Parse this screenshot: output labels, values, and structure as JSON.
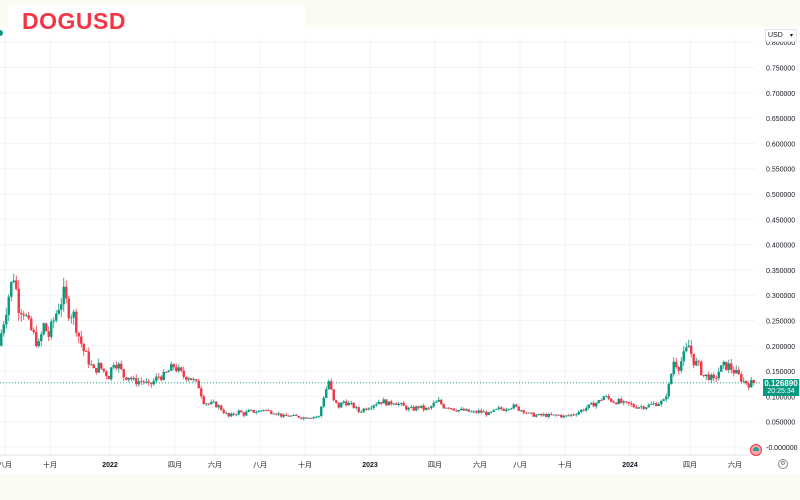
{
  "header": {
    "symbol": "DOGUSD",
    "currency": "USD"
  },
  "price_label": {
    "price": "0.126890",
    "countdown": "20:25:34"
  },
  "chart_data": {
    "type": "candlestick",
    "title": "DOGUSD",
    "interval": "weekly",
    "ylim": [
      0,
      0.8
    ],
    "y_ticks": [
      "0.800000",
      "0.750000",
      "0.700000",
      "0.650000",
      "0.600000",
      "0.550000",
      "0.500000",
      "0.450000",
      "0.400000",
      "0.350000",
      "0.300000",
      "0.250000",
      "0.200000",
      "0.150000",
      "0.100000",
      "0.050000",
      "-0.000000"
    ],
    "y_tick_values": [
      0.8,
      0.75,
      0.7,
      0.65,
      0.6,
      0.55,
      0.5,
      0.45,
      0.4,
      0.35,
      0.3,
      0.25,
      0.2,
      0.15,
      0.1,
      0.05,
      0
    ],
    "x_ticks": [
      "八月",
      "十月",
      "2022",
      "四月",
      "六月",
      "八月",
      "十月",
      "2023",
      "四月",
      "六月",
      "八月",
      "十月",
      "2024",
      "四月",
      "六月"
    ],
    "x_tick_weeks": [
      1,
      10,
      22,
      35,
      43,
      52,
      61,
      74,
      87,
      96,
      104,
      113,
      126,
      138,
      147
    ],
    "current_price": 0.12689,
    "closes": [
      0.2,
      0.25,
      0.3,
      0.34,
      0.28,
      0.27,
      0.24,
      0.22,
      0.2,
      0.24,
      0.22,
      0.25,
      0.28,
      0.3,
      0.27,
      0.26,
      0.22,
      0.19,
      0.17,
      0.15,
      0.16,
      0.15,
      0.14,
      0.17,
      0.16,
      0.14,
      0.14,
      0.13,
      0.13,
      0.13,
      0.12,
      0.13,
      0.14,
      0.14,
      0.15,
      0.16,
      0.15,
      0.14,
      0.14,
      0.13,
      0.12,
      0.09,
      0.085,
      0.085,
      0.08,
      0.07,
      0.06,
      0.065,
      0.07,
      0.065,
      0.07,
      0.07,
      0.07,
      0.075,
      0.07,
      0.07,
      0.065,
      0.06,
      0.062,
      0.06,
      0.06,
      0.058,
      0.06,
      0.06,
      0.06,
      0.1,
      0.13,
      0.09,
      0.08,
      0.09,
      0.085,
      0.08,
      0.07,
      0.075,
      0.08,
      0.085,
      0.09,
      0.09,
      0.085,
      0.09,
      0.085,
      0.08,
      0.075,
      0.075,
      0.08,
      0.075,
      0.075,
      0.085,
      0.09,
      0.08,
      0.08,
      0.075,
      0.073,
      0.072,
      0.07,
      0.068,
      0.07,
      0.068,
      0.065,
      0.07,
      0.075,
      0.075,
      0.08,
      0.08,
      0.075,
      0.072,
      0.065,
      0.063,
      0.062,
      0.063,
      0.062,
      0.062,
      0.063,
      0.06,
      0.062,
      0.065,
      0.07,
      0.075,
      0.08,
      0.085,
      0.09,
      0.1,
      0.095,
      0.09,
      0.09,
      0.085,
      0.085,
      0.08,
      0.08,
      0.08,
      0.082,
      0.085,
      0.087,
      0.09,
      0.12,
      0.17,
      0.16,
      0.18,
      0.2,
      0.17,
      0.16,
      0.14,
      0.14,
      0.13,
      0.15,
      0.16,
      0.16,
      0.15,
      0.14,
      0.13,
      0.125,
      0.127
    ],
    "colors": {
      "up": "#089981",
      "down": "#f23645",
      "grid": "#f0f3fa"
    }
  }
}
